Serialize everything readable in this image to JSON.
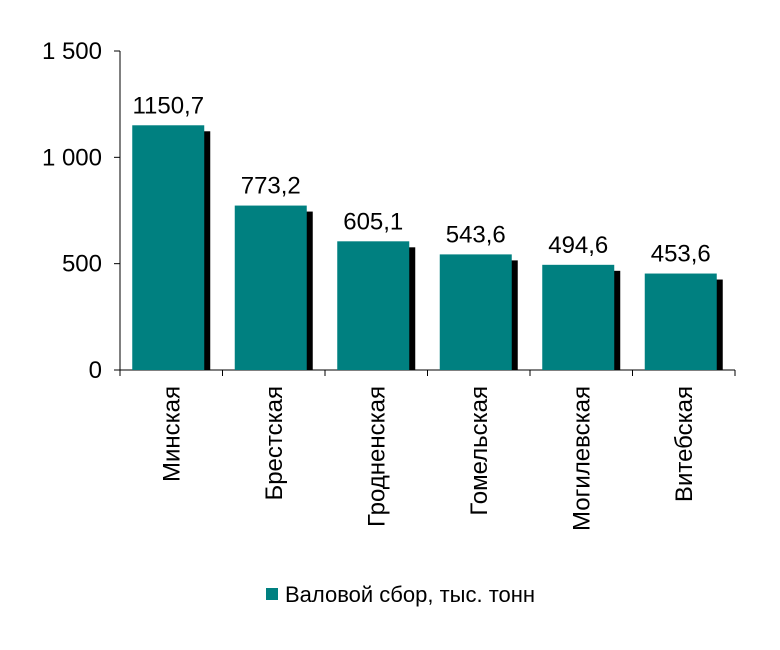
{
  "chart_data": {
    "type": "bar",
    "categories": [
      "Минская",
      "Брестская",
      "Гродненская",
      "Гомельская",
      "Могилевская",
      "Витебская"
    ],
    "series": [
      {
        "name": "Валовой сбор, тыс. тонн",
        "values": [
          1150.7,
          773.2,
          605.1,
          543.6,
          494.6,
          453.6
        ],
        "value_labels": [
          "1150,7",
          "773,2",
          "605,1",
          "543,6",
          "494,6",
          "453,6"
        ]
      }
    ],
    "ylim": [
      0,
      1500
    ],
    "yticks": [
      0,
      500,
      1000,
      1500
    ],
    "ytick_labels": [
      "0",
      "500",
      "1 000",
      "1 500"
    ],
    "grid": false,
    "legend_position": "bottom",
    "colors": {
      "bar": "#008080",
      "bar_shadow": "#000000",
      "axis": "#000000"
    }
  }
}
